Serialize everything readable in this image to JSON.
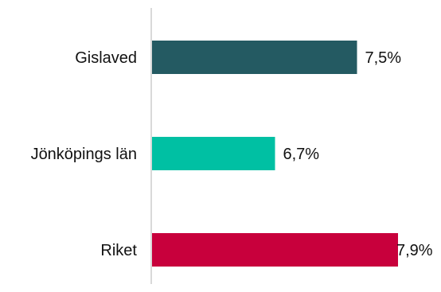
{
  "chart_data": {
    "type": "bar",
    "orientation": "horizontal",
    "categories": [
      "Gislaved",
      "Jönköpings län",
      "Riket"
    ],
    "values": [
      7.5,
      6.7,
      7.9
    ],
    "value_labels": [
      "7,5%",
      "6,7%",
      "7,9%"
    ],
    "bar_colors": [
      "#245a62",
      "#00c0a3",
      "#c8003c"
    ],
    "axis_color": "#d9d9d9",
    "xlim": [
      5.5,
      7.9
    ],
    "grid": false,
    "legend": "none"
  }
}
